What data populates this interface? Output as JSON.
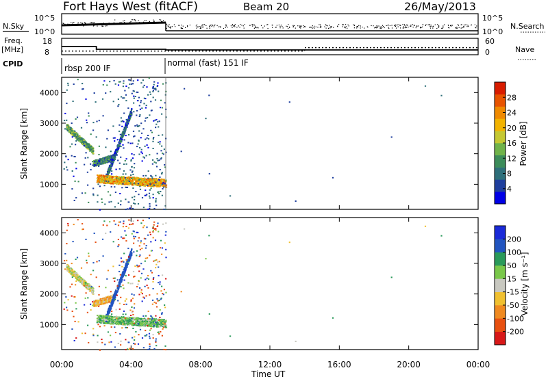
{
  "header": {
    "station": "Fort Hays West (fitACF)",
    "beam": "Beam 20",
    "date": "26/May/2013"
  },
  "top_panels": {
    "nsky_label": "N.Sky",
    "nsearch_label": "N.Search",
    "noise_ticks": [
      "10^5",
      "10^0"
    ],
    "freq_label_1": "Freq.",
    "freq_label_2": "[MHz]",
    "freq_ticks": [
      "18",
      "8"
    ],
    "nave_ticks": [
      "60",
      "0"
    ],
    "nave_label": "Nave",
    "cpid_label": "CPID",
    "cpid_1": "rbsp 200 IF",
    "cpid_2": "normal (fast) 151 IF"
  },
  "x_axis": {
    "ticks": [
      "00:00",
      "04:00",
      "08:00",
      "12:00",
      "16:00",
      "20:00",
      "00:00"
    ],
    "label": "Time UT"
  },
  "power_panel": {
    "ylabel": "Slant Range [km]",
    "y_ticks": [
      "4000",
      "3000",
      "2000",
      "1000"
    ],
    "colorbar_label": "Power [dB]",
    "colorbar_ticks": [
      "28",
      "24",
      "20",
      "16",
      "12",
      "8",
      "4"
    ],
    "colors": [
      "#0000e6",
      "#1f3f9e",
      "#2e6f7a",
      "#3c8c5a",
      "#70b34a",
      "#c5c832",
      "#f2b300",
      "#f08a00",
      "#e85400",
      "#d81c00"
    ]
  },
  "velocity_panel": {
    "ylabel": "Slant Range [km]",
    "y_ticks": [
      "4000",
      "3000",
      "2000",
      "1000"
    ],
    "colorbar_label": "Velocity [m s⁻¹]",
    "colorbar_ticks": [
      "200",
      "100",
      "50",
      "15",
      "-15",
      "-50",
      "-100",
      "-200"
    ],
    "colors": [
      "#1a2ad8",
      "#2255c0",
      "#2a9a5a",
      "#7ac84a",
      "#c8c8c0",
      "#f0c030",
      "#f08a20",
      "#e85010",
      "#d81818"
    ]
  },
  "chart_data": {
    "type": "heatmap",
    "time_range_hours": [
      0,
      24
    ],
    "range_km": [
      180,
      4500
    ],
    "cpid_changes_hours": [
      6.0
    ],
    "freq_mhz_steps": [
      {
        "start": 0,
        "end": 2,
        "value": 13
      },
      {
        "start": 2,
        "end": 6,
        "value": 11
      },
      {
        "start": 6,
        "end": 24,
        "value": 10.5
      }
    ],
    "nave_steps": [
      {
        "start": 0,
        "end": 14,
        "value": 10
      },
      {
        "start": 14,
        "end": 24,
        "value": 25
      }
    ],
    "power_scale_db": [
      0,
      30
    ],
    "velocity_scale_ms": [
      -250,
      250
    ],
    "echo_regions": [
      {
        "t_start": 0.25,
        "t_end": 1.8,
        "range_start": 2900,
        "range_end": 2100,
        "power_db": 12,
        "velocity": 0
      },
      {
        "t_start": 1.8,
        "t_end": 3.0,
        "range_start": 1700,
        "range_end": 1900,
        "power_db": 8,
        "velocity": -40
      },
      {
        "t_start": 2.5,
        "t_end": 4.0,
        "range_start": 1200,
        "range_end": 3400,
        "power_db": 6,
        "velocity": 150
      },
      {
        "t_start": 2.0,
        "t_end": 6.0,
        "range_start": 1200,
        "range_end": 1050,
        "power_db": 20,
        "velocity": 40
      }
    ]
  }
}
